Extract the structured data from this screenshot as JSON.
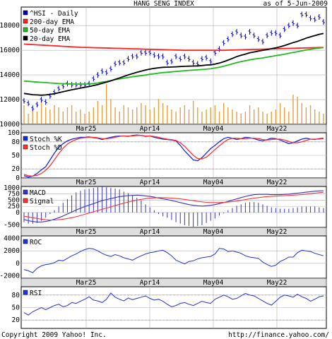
{
  "header": {
    "title": "HANG SENG INDEX",
    "asof": "as of  5-Jun-2009"
  },
  "footer": {
    "copyright": "Copyright 2009 Yahoo! Inc.",
    "url": "http://finance.yahoo.com/"
  },
  "colors": {
    "price": "#0000cc",
    "ema200": "#ff2222",
    "ema50": "#22bb22",
    "ema20": "#000000",
    "volume": "#e8a040",
    "stochK": "#1a2ad8",
    "stochD": "#ff3333",
    "macd": "#3333cc",
    "signal": "#ff3333",
    "roc": "#2233dd",
    "rsi": "#2233dd",
    "axisband": "#dedede",
    "grid": "#b0b0b0"
  },
  "x_axis": {
    "ticks": [
      "Mar25",
      "Apr14",
      "May04",
      "May22"
    ]
  },
  "chart_data": [
    {
      "type": "line",
      "title": "HANG SENG INDEX",
      "ylim": [
        10000,
        19500
      ],
      "yticks": [
        "18000",
        "16000",
        "14000",
        "12000",
        "10000"
      ],
      "legend": [
        "^HSI - Daily",
        "200-day EMA",
        "50-day EMA",
        "20-day EMA"
      ],
      "series": [
        {
          "name": "^HSI - Daily",
          "values": [
            11900,
            11700,
            11300,
            11600,
            12000,
            11800,
            12300,
            12600,
            12900,
            13100,
            13300,
            13200,
            13200,
            13200,
            13200,
            13300,
            13700,
            14000,
            14300,
            14200,
            14500,
            14900,
            15000,
            15000,
            15300,
            15500,
            15500,
            15800,
            15800,
            15800,
            15600,
            15500,
            15500,
            15000,
            15100,
            15500,
            15300,
            15500,
            15300,
            15000,
            14900,
            15300,
            15400,
            15100,
            15800,
            16100,
            16600,
            16900,
            17300,
            17500,
            17200,
            17100,
            17500,
            17200,
            16900,
            16700,
            17200,
            17400,
            17400,
            17200,
            17700,
            18000,
            18200,
            18000,
            18900,
            18900,
            18600,
            18500,
            18700,
            18300
          ]
        },
        {
          "name": "200-day EMA",
          "values": [
            16500,
            16480,
            16460,
            16440,
            16420,
            16400,
            16380,
            16360,
            16340,
            16320,
            16300,
            16280,
            16260,
            16240,
            16230,
            16220,
            16210,
            16200,
            16190,
            16180,
            16170,
            16160,
            16150,
            16140,
            16130,
            16120,
            16110,
            16100,
            16090,
            16080,
            16070,
            16060,
            16050,
            16040,
            16030,
            16020,
            16010,
            16000,
            16000,
            16000,
            16000,
            16000,
            16000,
            16000,
            16000,
            16000,
            16000,
            16010,
            16020,
            16030,
            16040,
            16050,
            16060,
            16070,
            16080,
            16090,
            16100,
            16110,
            16120,
            16130,
            16140,
            16150,
            16160,
            16170,
            16180,
            16190,
            16200,
            16210,
            16220,
            16230
          ]
        },
        {
          "name": "50-day EMA",
          "values": [
            13500,
            13480,
            13450,
            13420,
            13400,
            13380,
            13350,
            13330,
            13300,
            13290,
            13280,
            13270,
            13260,
            13250,
            13260,
            13280,
            13300,
            13350,
            13420,
            13470,
            13540,
            13620,
            13680,
            13740,
            13800,
            13860,
            13900,
            13940,
            13990,
            14050,
            14100,
            14150,
            14190,
            14220,
            14250,
            14280,
            14310,
            14340,
            14370,
            14390,
            14410,
            14440,
            14470,
            14500,
            14560,
            14620,
            14710,
            14800,
            14900,
            15000,
            15080,
            15150,
            15220,
            15280,
            15330,
            15380,
            15440,
            15500,
            15560,
            15620,
            15680,
            15750,
            15820,
            15880,
            15950,
            16020,
            16080,
            16130,
            16180,
            16220
          ]
        },
        {
          "name": "20-day EMA",
          "values": [
            12500,
            12450,
            12400,
            12380,
            12360,
            12380,
            12420,
            12480,
            12560,
            12640,
            12720,
            12800,
            12860,
            12930,
            13000,
            13060,
            13140,
            13220,
            13320,
            13420,
            13520,
            13640,
            13760,
            13880,
            14000,
            14110,
            14210,
            14310,
            14400,
            14470,
            14530,
            14580,
            14620,
            14630,
            14640,
            14660,
            14680,
            14700,
            14710,
            14720,
            14730,
            14760,
            14800,
            14820,
            14880,
            14960,
            15070,
            15200,
            15340,
            15480,
            15590,
            15690,
            15790,
            15860,
            15930,
            15990,
            16050,
            16130,
            16200,
            16280,
            16380,
            16500,
            16620,
            16720,
            16850,
            16980,
            17090,
            17190,
            17290,
            17360
          ]
        }
      ],
      "volume": [
        0.45,
        0.25,
        0.35,
        0.3,
        0.55,
        0.4,
        0.35,
        0.45,
        0.4,
        0.3,
        0.4,
        0.45,
        0.3,
        0.35,
        0.25,
        0.3,
        0.4,
        0.55,
        0.45,
        0.95,
        0.6,
        0.4,
        0.3,
        0.45,
        0.4,
        0.35,
        0.4,
        0.5,
        0.45,
        0.35,
        0.4,
        0.6,
        0.5,
        0.45,
        0.35,
        0.3,
        0.4,
        0.45,
        0.35,
        0.55,
        0.4,
        0.3,
        0.35,
        0.4,
        0.45,
        0.3,
        0.5,
        0.4,
        0.35,
        0.3,
        0.25,
        0.3,
        0.45,
        0.35,
        0.4,
        0.3,
        0.25,
        0.3,
        0.35,
        0.5,
        0.4,
        0.3,
        0.7,
        0.65,
        0.5,
        0.4,
        0.45,
        0.35,
        0.3,
        0.25
      ]
    },
    {
      "type": "line",
      "ylim": [
        0,
        100
      ],
      "yticks": [
        "100",
        "80",
        "50",
        "20",
        "0"
      ],
      "legend": [
        "Stoch %K",
        "Stoch %D"
      ],
      "series": [
        {
          "name": "Stoch %K",
          "values": [
            5,
            2,
            4,
            10,
            18,
            25,
            40,
            55,
            68,
            76,
            82,
            86,
            88,
            90,
            90,
            91,
            89,
            88,
            85,
            88,
            90,
            92,
            93,
            93,
            92,
            94,
            95,
            94,
            92,
            93,
            90,
            88,
            86,
            85,
            84,
            82,
            72,
            60,
            50,
            40,
            38,
            45,
            55,
            65,
            72,
            80,
            87,
            90,
            88,
            85,
            87,
            90,
            89,
            87,
            84,
            82,
            85,
            88,
            87,
            84,
            80,
            76,
            78,
            82,
            86,
            88,
            86,
            85,
            87,
            88
          ]
        },
        {
          "name": "Stoch %D",
          "values": [
            8,
            5,
            4,
            6,
            10,
            17,
            27,
            40,
            54,
            66,
            75,
            81,
            85,
            88,
            89,
            90,
            90,
            89,
            87,
            87,
            88,
            90,
            92,
            93,
            93,
            93,
            94,
            94,
            93,
            93,
            92,
            90,
            88,
            86,
            85,
            83,
            78,
            70,
            60,
            50,
            43,
            42,
            46,
            54,
            63,
            71,
            79,
            85,
            88,
            88,
            87,
            87,
            88,
            88,
            87,
            85,
            84,
            85,
            86,
            86,
            84,
            81,
            78,
            78,
            80,
            83,
            86,
            86,
            86,
            87
          ]
        }
      ]
    },
    {
      "type": "line",
      "ylim": [
        -600,
        1050
      ],
      "yticks": [
        "1000",
        "750",
        "500",
        "250",
        "0",
        "-500"
      ],
      "legend": [
        "MACD",
        "Signal"
      ],
      "series": [
        {
          "name": "MACD",
          "values": [
            -280,
            -330,
            -360,
            -380,
            -380,
            -360,
            -320,
            -270,
            -210,
            -140,
            -60,
            20,
            100,
            170,
            240,
            300,
            360,
            420,
            480,
            520,
            560,
            600,
            640,
            660,
            680,
            690,
            700,
            690,
            670,
            650,
            620,
            580,
            550,
            520,
            480,
            440,
            400,
            360,
            320,
            290,
            270,
            260,
            270,
            290,
            320,
            360,
            400,
            450,
            500,
            550,
            600,
            650,
            690,
            720,
            730,
            730,
            730,
            720,
            720,
            720,
            730,
            740,
            760,
            780,
            800,
            820,
            840,
            860,
            870,
            880
          ]
        },
        {
          "name": "Signal",
          "values": [
            -150,
            -180,
            -210,
            -240,
            -270,
            -290,
            -300,
            -300,
            -290,
            -270,
            -240,
            -210,
            -170,
            -120,
            -70,
            -20,
            30,
            80,
            130,
            180,
            230,
            280,
            330,
            380,
            420,
            460,
            500,
            530,
            560,
            580,
            590,
            600,
            600,
            590,
            580,
            570,
            550,
            530,
            500,
            480,
            450,
            430,
            410,
            400,
            400,
            400,
            410,
            420,
            440,
            460,
            490,
            520,
            550,
            580,
            600,
            620,
            640,
            650,
            660,
            670,
            680,
            690,
            700,
            710,
            720,
            740,
            760,
            780,
            800,
            820
          ]
        }
      ]
    },
    {
      "type": "line",
      "ylim": [
        -2400,
        4400
      ],
      "yticks": [
        "4000",
        "2000",
        "0",
        "-2000"
      ],
      "legend": [
        "ROC"
      ],
      "series": [
        {
          "name": "ROC",
          "values": [
            -1000,
            -1200,
            -1500,
            -800,
            -400,
            -200,
            -100,
            100,
            500,
            400,
            800,
            1200,
            1500,
            1900,
            2200,
            2400,
            2300,
            2000,
            1600,
            1300,
            1100,
            1400,
            1200,
            900,
            700,
            500,
            900,
            1200,
            1500,
            1700,
            1800,
            2000,
            2100,
            1700,
            1200,
            500,
            200,
            -100,
            300,
            400,
            700,
            900,
            1000,
            1100,
            1500,
            2400,
            2300,
            1900,
            2000,
            1800,
            1600,
            1200,
            1000,
            900,
            800,
            200,
            -200,
            -500,
            -300,
            300,
            600,
            1000,
            1000,
            1700,
            2100,
            2000,
            1900,
            1600,
            1400,
            1200
          ]
        }
      ]
    },
    {
      "type": "line",
      "ylim": [
        0,
        100
      ],
      "yticks": [
        "80",
        "50",
        "20"
      ],
      "legend": [
        "RSI"
      ],
      "series": [
        {
          "name": "RSI",
          "values": [
            38,
            32,
            40,
            45,
            50,
            45,
            50,
            55,
            58,
            52,
            55,
            62,
            60,
            65,
            70,
            76,
            68,
            66,
            62,
            70,
            85,
            75,
            70,
            66,
            73,
            69,
            72,
            75,
            78,
            72,
            68,
            70,
            65,
            58,
            52,
            55,
            60,
            62,
            58,
            55,
            60,
            65,
            62,
            60,
            70,
            75,
            80,
            76,
            70,
            72,
            78,
            84,
            80,
            78,
            72,
            66,
            60,
            56,
            65,
            75,
            80,
            78,
            75,
            82,
            76,
            72,
            65,
            70,
            76,
            78
          ]
        }
      ]
    }
  ]
}
